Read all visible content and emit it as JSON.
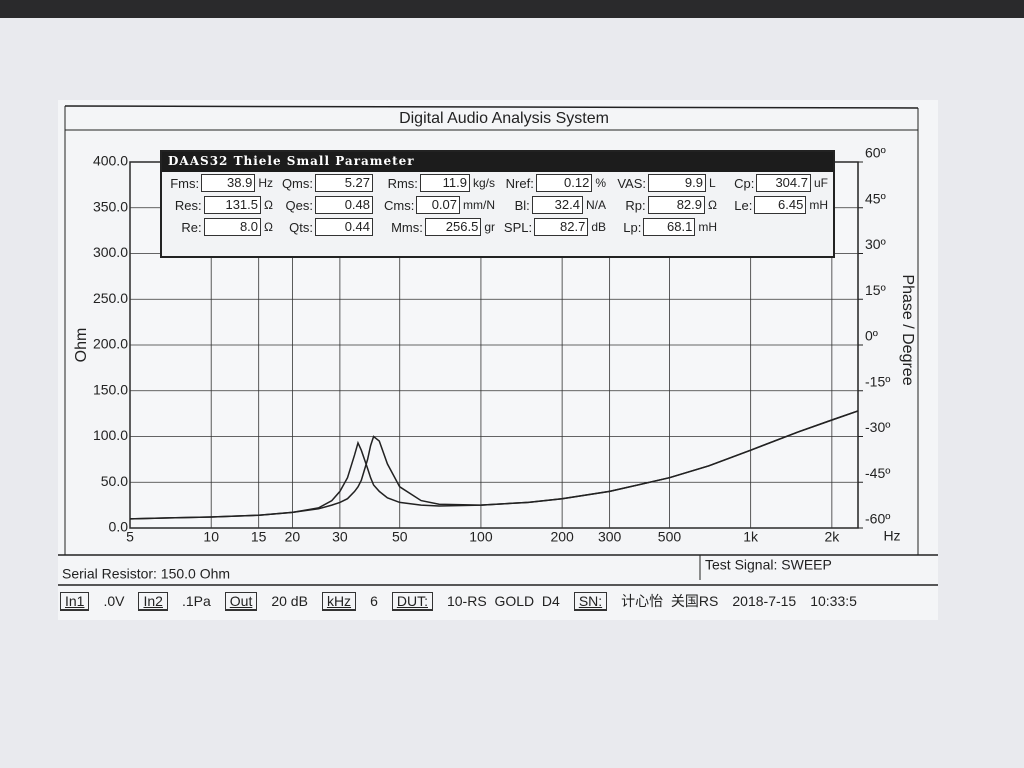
{
  "chart_data": {
    "type": "line",
    "title": "Digital Audio Analysis System",
    "y_label": "Ohm",
    "y2_label": "Phase / Degree",
    "x_label": "Hz",
    "xscale": "log",
    "grid": true,
    "x": [
      5,
      7,
      10,
      15,
      20,
      25,
      28,
      30,
      32,
      34,
      35,
      36,
      38,
      39,
      40,
      42,
      45,
      50,
      60,
      70,
      100,
      150,
      200,
      300,
      500,
      700,
      1000,
      1500,
      2000,
      2500
    ],
    "series": [
      {
        "color": "#222222",
        "values": [
          10,
          11,
          12,
          14,
          17,
          22,
          30,
          40,
          55,
          80,
          93,
          85,
          65,
          55,
          47,
          40,
          33,
          28,
          25,
          24,
          25,
          28,
          32,
          40,
          55,
          68,
          85,
          105,
          118,
          128
        ]
      },
      {
        "color": "#222222",
        "values": [
          10,
          11,
          12,
          14,
          17,
          21,
          25,
          28,
          32,
          40,
          45,
          52,
          75,
          90,
          100,
          95,
          70,
          45,
          30,
          26,
          25,
          28,
          32,
          40,
          55,
          68,
          85,
          105,
          118,
          128
        ]
      }
    ],
    "xlim": [
      5,
      2500
    ],
    "xticks": [
      5,
      10,
      15,
      20,
      30,
      50,
      100,
      200,
      300,
      500,
      {
        "value": 1000,
        "label": "1k"
      },
      {
        "value": 2000,
        "label": "2k"
      }
    ],
    "ylim": [
      0,
      400
    ],
    "yticks": [
      {
        "value": 0,
        "label": "0.0"
      },
      {
        "value": 50,
        "label": "50.0"
      },
      {
        "value": 100,
        "label": "100.0"
      },
      {
        "value": 150,
        "label": "150.0"
      },
      {
        "value": 200,
        "label": "200.0"
      },
      {
        "value": 250,
        "label": "250.0"
      },
      {
        "value": 300,
        "label": "300.0"
      },
      {
        "value": 350,
        "label": "350.0"
      },
      {
        "value": 400,
        "label": "400.0"
      }
    ],
    "y2lim": [
      -60,
      60
    ],
    "y2ticks": [
      {
        "value": -60,
        "label": "-60º"
      },
      {
        "value": -45,
        "label": "-45º"
      },
      {
        "value": -30,
        "label": "-30º"
      },
      {
        "value": -15,
        "label": "-15º"
      },
      {
        "value": 0,
        "label": "0º"
      },
      {
        "value": 15,
        "label": "15º"
      },
      {
        "value": 30,
        "label": "30º"
      },
      {
        "value": 45,
        "label": "45º"
      },
      {
        "value": 60,
        "label": "60º"
      }
    ]
  },
  "parameters": {
    "title": "DAAS32 Thiele Small Parameter",
    "rows": [
      [
        {
          "label": "Fms:",
          "value": "38.9",
          "unit": "Hz"
        },
        {
          "label": "Qms:",
          "value": "5.27"
        },
        {
          "label": "Rms:",
          "value": "11.9",
          "unit": "kg/s"
        },
        {
          "label": "Nref:",
          "value": "0.12",
          "unit": "%"
        },
        {
          "label": "VAS:",
          "value": "9.9",
          "unit": "L"
        },
        {
          "label": "Cp:",
          "value": "304.7",
          "unit": "uF"
        }
      ],
      [
        {
          "label": "Res:",
          "value": "131.5",
          "unit": "Ω"
        },
        {
          "label": "Qes:",
          "value": "0.48"
        },
        {
          "label": "Cms:",
          "value": "0.07",
          "unit": "mm/N"
        },
        {
          "label": "Bl:",
          "value": "32.4",
          "unit": "N/A"
        },
        {
          "label": "Rp:",
          "value": "82.9",
          "unit": "Ω"
        },
        {
          "label": "Le:",
          "value": "6.45",
          "unit": "mH"
        }
      ],
      [
        {
          "label": "Re:",
          "value": "8.0",
          "unit": "Ω"
        },
        {
          "label": "Qts:",
          "value": "0.44"
        },
        {
          "label": "Mms:",
          "value": "256.5",
          "unit": "gr"
        },
        {
          "label": "SPL:",
          "value": "82.7",
          "unit": "dB"
        },
        {
          "label": "Lp:",
          "value": "68.1",
          "unit": "mH"
        }
      ]
    ]
  },
  "serial_resistor": "Serial Resistor: 150.0 Ohm",
  "test_signal": "Test Signal: SWEEP",
  "status_bar": [
    {
      "text": "In1",
      "boxed": true
    },
    {
      "text": ".0V"
    },
    {
      "text": "In2",
      "boxed": true
    },
    {
      "text": ".1Pa"
    },
    {
      "text": "Out",
      "boxed": true
    },
    {
      "text": "20 dB"
    },
    {
      "text": "kHz",
      "boxed": true
    },
    {
      "text": "6"
    },
    {
      "text": "DUT:",
      "boxed": true
    },
    {
      "text": "10-RS  GOLD  D4"
    },
    {
      "text": "SN:",
      "boxed": true
    },
    {
      "text": "计心怡  关国RS"
    },
    {
      "text": "2018-7-15"
    },
    {
      "text": "10:33:5"
    }
  ]
}
